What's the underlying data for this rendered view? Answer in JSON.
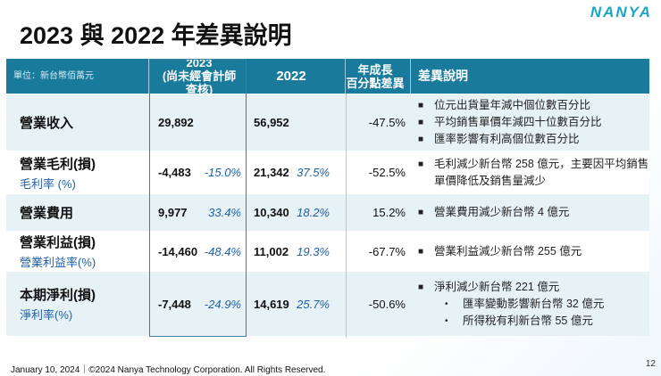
{
  "title": "2023 與 2022 年差異說明",
  "logo": "NANYA",
  "header": {
    "unit": "單位：新台幣佰萬元",
    "y2023": "2023",
    "y2023_note": "(尚未經會計師查核)",
    "y2022": "2022",
    "growth_l1": "年成長",
    "growth_l2": "百分點差異",
    "explain": "差異說明"
  },
  "rows": [
    {
      "label": "營業收入",
      "sub": "",
      "v2023": "29,892",
      "p2023": "",
      "v2022": "56,952",
      "p2022": "",
      "growth": "-47.5%",
      "notes": [
        "位元出貨量年減中個位數百分比",
        "平均銷售單價年減四十位數百分比",
        "匯率影響有利高個位數百分比"
      ]
    },
    {
      "label": "營業毛利(損)",
      "sub": "毛利率 (%)",
      "v2023": "-4,483",
      "p2023": "-15.0%",
      "v2022": "21,342",
      "p2022": "37.5%",
      "growth": "-52.5%",
      "notes": [
        "毛利減少新台幣 258 億元，主要因平均銷售單價降低及銷售量減少"
      ]
    },
    {
      "label": "營業費用",
      "sub": "",
      "v2023": "9,977",
      "p2023": "33.4%",
      "v2022": "10,340",
      "p2022": "18.2%",
      "growth": "15.2%",
      "notes": [
        "營業費用減少新台幣 4 億元"
      ]
    },
    {
      "label": "營業利益(損)",
      "sub": "營業利益率(%)",
      "v2023": "-14,460",
      "p2023": "-48.4%",
      "v2022": "11,002",
      "p2022": "19.3%",
      "growth": "-67.7%",
      "notes": [
        "營業利益減少新台幣 255 億元"
      ]
    },
    {
      "label": "本期淨利(損)",
      "sub": "淨利率(%)",
      "v2023": "-7,448",
      "p2023": "-24.9%",
      "v2022": "14,619",
      "p2022": "25.7%",
      "growth": "-50.6%",
      "notes": [
        "淨利減少新台幣 221 億元"
      ],
      "subnotes": [
        "匯率變動影響新台幣 32 億元",
        "所得稅有利新台幣 55 億元"
      ]
    }
  ],
  "footer": "January 10, 2024｜©2024 Nanya Technology Corporation. All Rights Reserved.",
  "page": "12",
  "colors": {
    "header": "#1a7a9c",
    "accent": "#1f5fa8",
    "logo": "#1aa6c4"
  }
}
